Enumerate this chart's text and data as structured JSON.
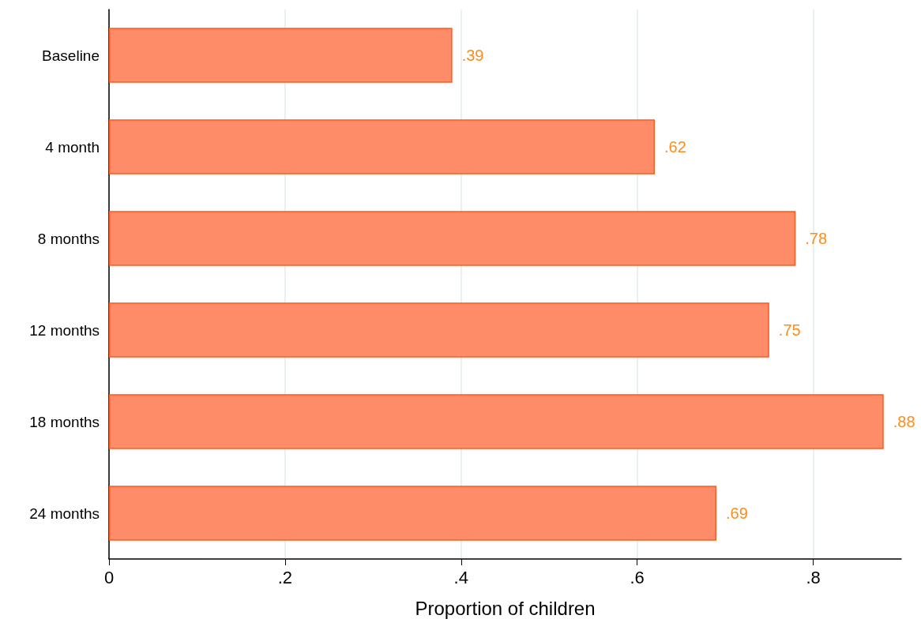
{
  "chart_data": {
    "type": "bar",
    "orientation": "horizontal",
    "categories": [
      "Baseline",
      "4 month",
      "8 months",
      "12 months",
      "18 months",
      "24 months"
    ],
    "values": [
      0.39,
      0.62,
      0.78,
      0.75,
      0.88,
      0.69
    ],
    "value_labels": [
      ".39",
      ".62",
      ".78",
      ".75",
      ".88",
      ".69"
    ],
    "color": "#ff8c69",
    "xlabel": "Proportion of children",
    "xlim": [
      0,
      0.9
    ],
    "xticks": [
      0,
      {
        "value": 0.2,
        "label": ".2"
      },
      {
        "value": 0.4,
        "label": ".4"
      },
      {
        "value": 0.6,
        "label": ".6"
      },
      {
        "value": 0.8,
        "label": ".8"
      }
    ],
    "grid": "x"
  }
}
